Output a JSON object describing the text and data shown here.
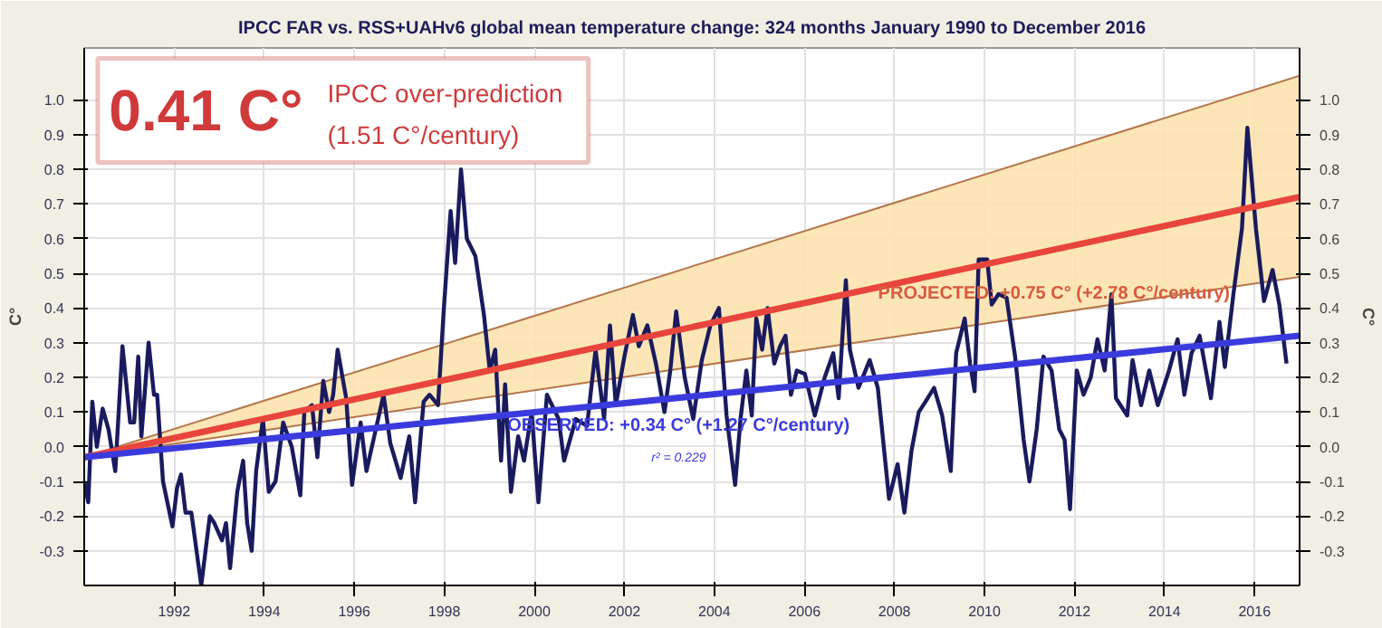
{
  "chart_data": {
    "type": "line",
    "title": "IPCC FAR vs. RSS+UAHv6 global mean temperature change: 324 months January 1990 to December 2016",
    "ylabel": "C°",
    "y2label": "C°",
    "xlim": [
      1990,
      2017
    ],
    "ylim": [
      -0.4,
      1.15
    ],
    "y2lim": [
      -0.4,
      1.15
    ],
    "xticks": [
      1992,
      1994,
      1996,
      1998,
      2000,
      2002,
      2004,
      2006,
      2008,
      2010,
      2012,
      2014,
      2016
    ],
    "yticks": [
      {
        "value": -0.3,
        "label": "-0.3"
      },
      {
        "value": -0.2,
        "label": "-0.2"
      },
      {
        "value": -0.1,
        "label": "-0.1"
      },
      {
        "value": 0,
        "label": "0.0"
      },
      {
        "value": 0.1,
        "label": "0.1"
      },
      {
        "value": 0.2,
        "label": "0.2"
      },
      {
        "value": 0.3,
        "label": "0.3"
      },
      {
        "value": 0.4,
        "label": "0.4"
      },
      {
        "value": 0.5,
        "label": "0.5"
      },
      {
        "value": 0.6,
        "label": "0.6"
      },
      {
        "value": 0.7,
        "label": "0.7"
      },
      {
        "value": 0.8,
        "label": "0.8"
      },
      {
        "value": 0.9,
        "label": "0.9"
      },
      {
        "value": 1,
        "label": "1.0"
      }
    ],
    "y2ticks": [
      {
        "value": -0.3,
        "label": "-0.3"
      },
      {
        "value": -0.2,
        "label": "-0.2"
      },
      {
        "value": -0.1,
        "label": "-0.1"
      },
      {
        "value": 0,
        "label": "0.0"
      },
      {
        "value": 0.1,
        "label": "0.1"
      },
      {
        "value": 0.2,
        "label": "0.2"
      },
      {
        "value": 0.3,
        "label": "0.3"
      },
      {
        "value": 0.4,
        "label": "0.4"
      },
      {
        "value": 0.5,
        "label": "0.5"
      },
      {
        "value": 0.6,
        "label": "0.6"
      },
      {
        "value": 0.7,
        "label": "0.7"
      },
      {
        "value": 0.8,
        "label": "0.8"
      },
      {
        "value": 0.9,
        "label": "0.9"
      },
      {
        "value": 1,
        "label": "1.0"
      }
    ],
    "grid": true,
    "series": [
      {
        "color": "#e8453c",
        "x": [
          1990,
          2017
        ],
        "values": [
          -0.03,
          0.72
        ],
        "lower": [
          -0.03,
          0.49
        ],
        "upper": [
          -0.03,
          1.07
        ]
      },
      {
        "color": "#3b3bdd",
        "x": [
          1990,
          2017
        ],
        "values": [
          -0.03,
          0.32
        ]
      },
      {
        "color": "#b5764a",
        "x": [
          1990,
          2017
        ],
        "values": [
          -0.03,
          1.07
        ]
      },
      {
        "color": "#b5764a",
        "x": [
          1990,
          2017
        ],
        "values": [
          -0.03,
          0.49
        ]
      },
      {
        "color": "#1a1a5e",
        "x": [
          1990.0,
          1990.09,
          1990.18,
          1990.28,
          1990.41,
          1990.54,
          1990.69,
          1990.85,
          1991.02,
          1991.11,
          1991.2,
          1991.27,
          1991.43,
          1991.55,
          1991.62,
          1991.75,
          1991.96,
          1992.06,
          1992.15,
          1992.25,
          1992.38,
          1992.6,
          1992.79,
          1992.89,
          1993.06,
          1993.15,
          1993.24,
          1993.4,
          1993.53,
          1993.62,
          1993.72,
          1993.82,
          1993.97,
          1994.1,
          1994.25,
          1994.42,
          1994.61,
          1994.8,
          1994.89,
          1995.06,
          1995.18,
          1995.31,
          1995.44,
          1995.53,
          1995.63,
          1995.82,
          1995.95,
          1996.14,
          1996.27,
          1996.46,
          1996.65,
          1996.8,
          1997.03,
          1997.22,
          1997.35,
          1997.54,
          1997.67,
          1997.86,
          1997.99,
          1998.14,
          1998.24,
          1998.37,
          1998.5,
          1998.69,
          1998.88,
          1999.01,
          1999.13,
          1999.26,
          1999.35,
          1999.48,
          1999.64,
          1999.77,
          1999.94,
          2000.09,
          2000.28,
          2000.54,
          2000.66,
          2000.92,
          2001.17,
          2001.36,
          2001.55,
          2001.68,
          2001.81,
          2002.0,
          2002.19,
          2002.32,
          2002.51,
          2002.7,
          2002.89,
          2003.02,
          2003.15,
          2003.34,
          2003.53,
          2003.72,
          2003.91,
          2004.1,
          2004.27,
          2004.46,
          2004.58,
          2004.71,
          2004.83,
          2004.93,
          2005.06,
          2005.18,
          2005.33,
          2005.46,
          2005.58,
          2005.7,
          2005.83,
          2006.01,
          2006.23,
          2006.45,
          2006.64,
          2006.76,
          2006.92,
          2007.01,
          2007.2,
          2007.45,
          2007.63,
          2007.88,
          2008.07,
          2008.22,
          2008.38,
          2008.54,
          2008.69,
          2008.88,
          2009.06,
          2009.25,
          2009.37,
          2009.56,
          2009.68,
          2009.78,
          2009.87,
          2010.06,
          2010.16,
          2010.31,
          2010.49,
          2010.68,
          2010.87,
          2011.0,
          2011.16,
          2011.31,
          2011.49,
          2011.66,
          2011.78,
          2011.9,
          2012.05,
          2012.2,
          2012.36,
          2012.51,
          2012.67,
          2012.82,
          2012.92,
          2013.17,
          2013.29,
          2013.48,
          2013.66,
          2013.85,
          2014.1,
          2014.29,
          2014.44,
          2014.6,
          2014.78,
          2015.03,
          2015.22,
          2015.34,
          2015.53,
          2015.72,
          2015.84,
          2016.03,
          2016.21,
          2016.4,
          2016.55,
          2016.71
        ],
        "values": [
          -0.1,
          -0.16,
          0.13,
          0.0,
          0.11,
          0.05,
          -0.07,
          0.29,
          0.07,
          0.07,
          0.26,
          0.03,
          0.3,
          0.15,
          0.15,
          -0.1,
          -0.23,
          -0.12,
          -0.08,
          -0.19,
          -0.19,
          -0.4,
          -0.2,
          -0.22,
          -0.27,
          -0.22,
          -0.35,
          -0.13,
          -0.04,
          -0.22,
          -0.3,
          -0.07,
          0.08,
          -0.13,
          -0.1,
          0.07,
          0.0,
          -0.14,
          0.1,
          0.12,
          -0.03,
          0.19,
          0.1,
          0.15,
          0.28,
          0.14,
          -0.11,
          0.07,
          -0.07,
          0.04,
          0.15,
          0.01,
          -0.09,
          0.03,
          -0.16,
          0.13,
          0.15,
          0.12,
          0.4,
          0.68,
          0.53,
          0.8,
          0.6,
          0.55,
          0.38,
          0.22,
          0.28,
          -0.04,
          0.18,
          -0.13,
          0.03,
          -0.04,
          0.1,
          -0.16,
          0.15,
          0.08,
          -0.04,
          0.08,
          0.06,
          0.28,
          0.08,
          0.35,
          0.12,
          0.26,
          0.38,
          0.29,
          0.35,
          0.24,
          0.1,
          0.22,
          0.39,
          0.2,
          0.08,
          0.25,
          0.35,
          0.4,
          0.09,
          -0.11,
          0.08,
          0.22,
          0.09,
          0.37,
          0.28,
          0.4,
          0.24,
          0.29,
          0.32,
          0.15,
          0.22,
          0.21,
          0.09,
          0.2,
          0.27,
          0.14,
          0.48,
          0.28,
          0.17,
          0.25,
          0.17,
          -0.15,
          -0.05,
          -0.19,
          -0.01,
          0.1,
          0.13,
          0.17,
          0.09,
          -0.07,
          0.27,
          0.37,
          0.24,
          0.16,
          0.54,
          0.54,
          0.41,
          0.44,
          0.43,
          0.26,
          0.02,
          -0.1,
          0.05,
          0.26,
          0.22,
          0.05,
          0.02,
          -0.18,
          0.22,
          0.15,
          0.2,
          0.31,
          0.22,
          0.44,
          0.14,
          0.09,
          0.25,
          0.12,
          0.22,
          0.12,
          0.22,
          0.31,
          0.15,
          0.27,
          0.32,
          0.14,
          0.36,
          0.23,
          0.44,
          0.63,
          0.92,
          0.63,
          0.42,
          0.51,
          0.41,
          0.24
        ]
      }
    ],
    "annotations": [
      "0.41 C°",
      "IPCC over-prediction",
      "(1.51 C°/century)",
      "PROJECTED: +0.75 C° (+2.78 C°/century)",
      "OBSERVED: +0.34 C° (+1.27 C°/century)",
      "r² = 0.229"
    ]
  }
}
